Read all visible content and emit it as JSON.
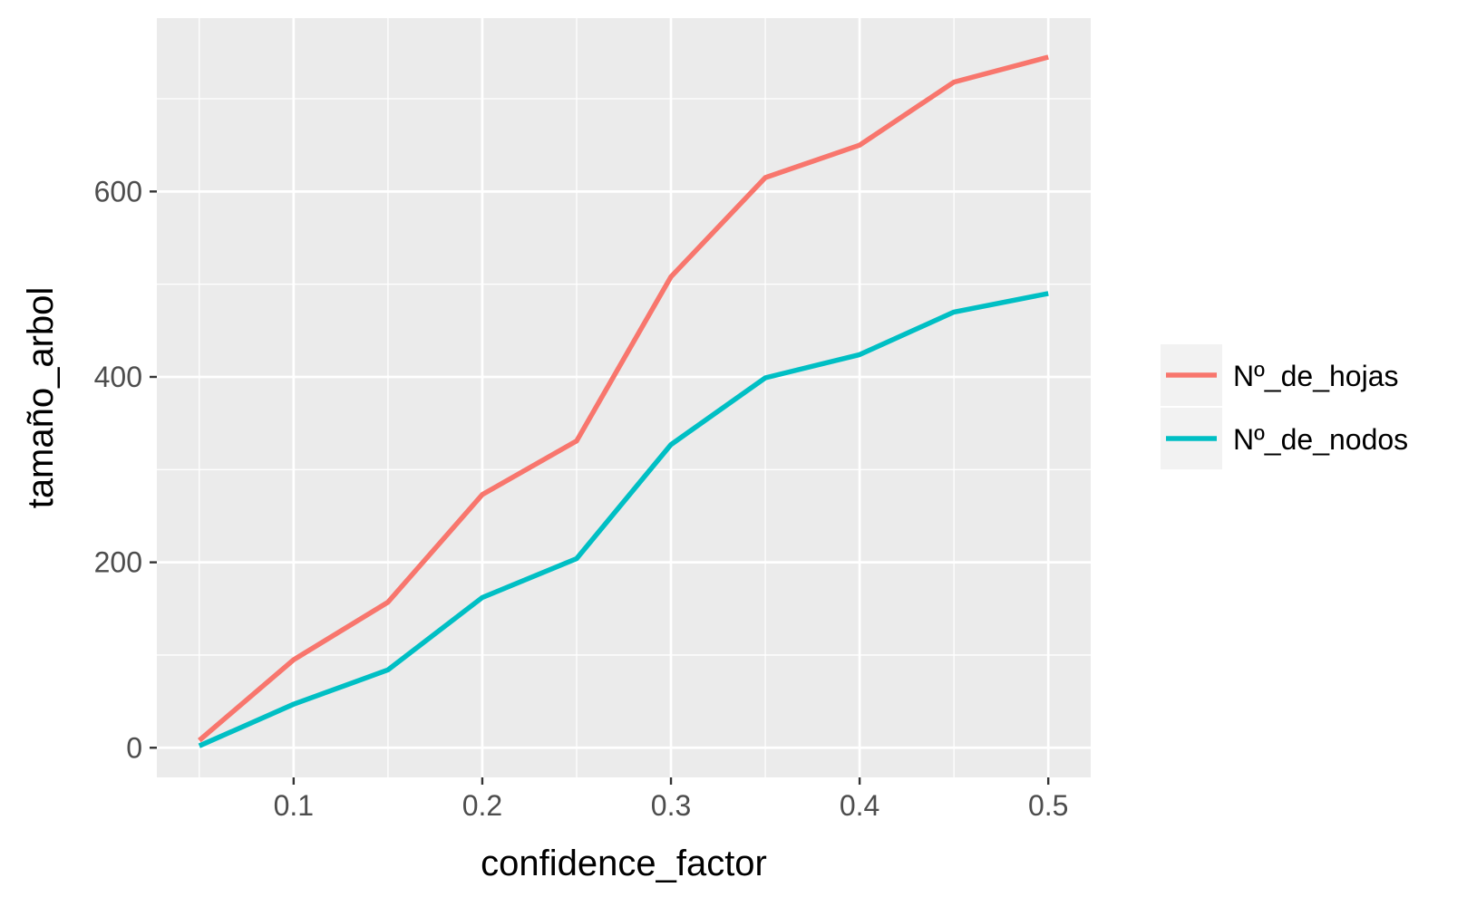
{
  "chart_data": {
    "type": "line",
    "x": [
      0.05,
      0.1,
      0.15,
      0.2,
      0.25,
      0.3,
      0.35,
      0.4,
      0.45,
      0.5
    ],
    "series": [
      {
        "name": "Nº_de_hojas",
        "color": "#F8766D",
        "values": [
          8,
          95,
          157,
          273,
          331,
          508,
          615,
          650,
          718,
          745
        ]
      },
      {
        "name": "Nº_de_nodos",
        "color": "#00BFC4",
        "values": [
          2,
          47,
          84,
          162,
          204,
          327,
          399,
          424,
          470,
          490
        ]
      }
    ],
    "xlabel": "confidence_factor",
    "ylabel": "tamaño_arbol",
    "xlim": [
      0.0275,
      0.5225
    ],
    "ylim": [
      -32,
      787
    ],
    "x_ticks": [
      0.1,
      0.2,
      0.3,
      0.4,
      0.5
    ],
    "x_tick_labels": [
      "0.1",
      "0.2",
      "0.3",
      "0.4",
      "0.5"
    ],
    "y_ticks": [
      0,
      200,
      400,
      600
    ],
    "y_tick_labels": [
      "0",
      "200",
      "400",
      "600"
    ],
    "grid": true,
    "panel_background": "#EBEBEB",
    "grid_color": "#FFFFFF",
    "legend_position": "right"
  }
}
